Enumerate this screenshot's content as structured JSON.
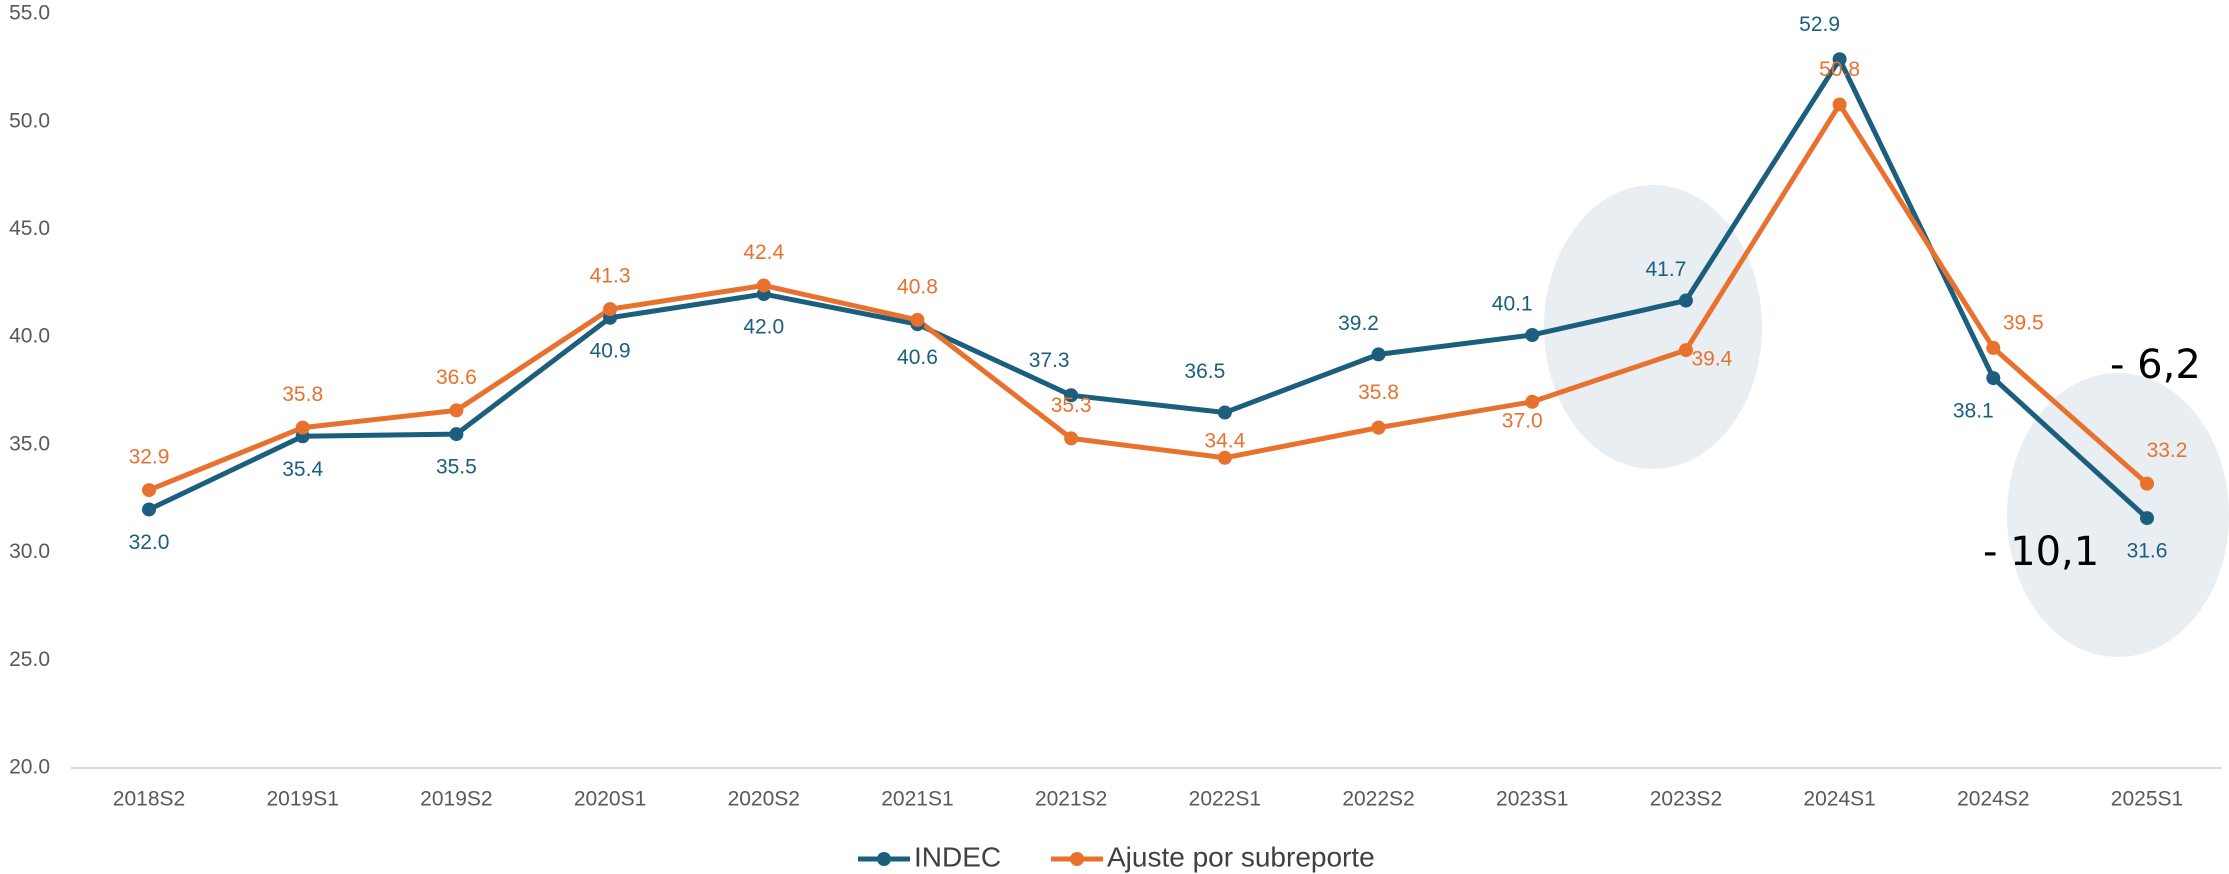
{
  "chart_data": {
    "type": "line",
    "categories": [
      "2018S2",
      "2019S1",
      "2019S2",
      "2020S1",
      "2020S2",
      "2021S1",
      "2021S2",
      "2022S1",
      "2022S2",
      "2023S1",
      "2023S2",
      "2024S1",
      "2024S2",
      "2025S1"
    ],
    "series": [
      {
        "name": "INDEC",
        "color": "#1b5e7e",
        "values": [
          32.0,
          35.4,
          35.5,
          40.9,
          42.0,
          40.6,
          37.3,
          36.5,
          39.2,
          40.1,
          41.7,
          52.9,
          38.1,
          31.6
        ],
        "value_labels": [
          "32.0",
          "35.4",
          "35.5",
          "40.9",
          "42.0",
          "40.6",
          "37.3",
          "36.5",
          "39.2",
          "40.1",
          "41.7",
          "52.9",
          "38.1",
          "31.6"
        ]
      },
      {
        "name": "Ajuste por subreporte",
        "color": "#e8712e",
        "values": [
          32.9,
          35.8,
          36.6,
          41.3,
          42.4,
          40.8,
          35.3,
          34.4,
          35.8,
          37.0,
          39.4,
          50.8,
          39.5,
          33.2
        ],
        "value_labels": [
          "32.9",
          "35.8",
          "36.6",
          "41.3",
          "42.4",
          "40.8",
          "35.3",
          "34.4",
          "35.8",
          "37.0",
          "39.4",
          "50.8",
          "39.5",
          "33.2"
        ]
      }
    ],
    "ylim": [
      20,
      55
    ],
    "yticks": [
      {
        "value": 20,
        "label": "20.0"
      },
      {
        "value": 25,
        "label": "25.0"
      },
      {
        "value": 30,
        "label": "30.0"
      },
      {
        "value": 35,
        "label": "35.0"
      },
      {
        "value": 40,
        "label": "40.0"
      },
      {
        "value": 45,
        "label": "45.0"
      },
      {
        "value": 50,
        "label": "50.0"
      },
      {
        "value": 55,
        "label": "55.0"
      }
    ],
    "grid": false,
    "legend": "bottom",
    "annotations": [
      "- 6,2",
      "- 10,1"
    ]
  }
}
